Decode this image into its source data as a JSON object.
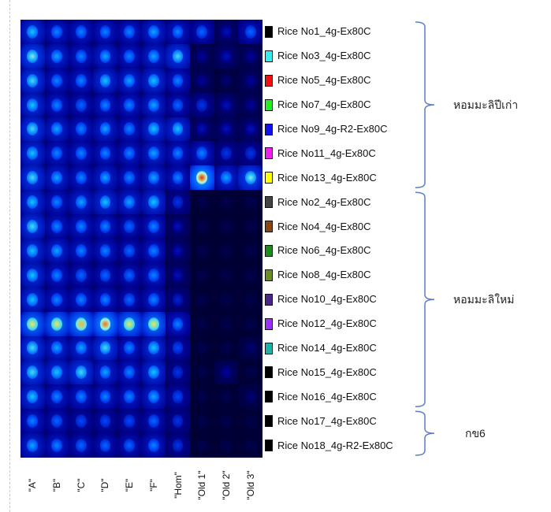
{
  "chart_data": {
    "type": "heatmap",
    "title": "",
    "xlabel": "",
    "ylabel": "",
    "columns": [
      "\"A\"",
      "\"B\"",
      "\"C\"",
      "\"D\"",
      "\"E\"",
      "\"F\"",
      "\"Hom\"",
      "\"Old 1\"",
      "\"Old 2\"",
      "\"Old 3\""
    ],
    "rows": [
      {
        "label": "Rice No1_4g-Ex80C",
        "color": "#000000",
        "values": [
          0.55,
          0.45,
          0.45,
          0.45,
          0.45,
          0.5,
          0.45,
          0.4,
          0.2,
          0.4
        ]
      },
      {
        "label": "Rice No3_4g-Ex80C",
        "color": "#33eeee",
        "values": [
          0.65,
          0.5,
          0.45,
          0.5,
          0.45,
          0.5,
          0.6,
          0.15,
          0.2,
          0.15
        ]
      },
      {
        "label": "Rice No5_4g-Ex80C",
        "color": "#ee1111",
        "values": [
          0.6,
          0.45,
          0.45,
          0.55,
          0.5,
          0.55,
          0.45,
          0.15,
          0.1,
          0.15
        ]
      },
      {
        "label": "Rice No7_4g-Ex80C",
        "color": "#22ee22",
        "values": [
          0.55,
          0.45,
          0.4,
          0.45,
          0.45,
          0.5,
          0.4,
          0.3,
          0.2,
          0.15
        ]
      },
      {
        "label": "Rice No9_4g-R2-Ex80C",
        "color": "#1111ee",
        "values": [
          0.6,
          0.5,
          0.45,
          0.5,
          0.45,
          0.55,
          0.55,
          0.2,
          0.2,
          0.2
        ]
      },
      {
        "label": "Rice No11_4g-Ex80C",
        "color": "#ee22ee",
        "values": [
          0.55,
          0.45,
          0.45,
          0.45,
          0.45,
          0.5,
          0.45,
          0.45,
          0.3,
          0.3
        ]
      },
      {
        "label": "Rice No13_4g-Ex80C",
        "color": "#ffff00",
        "values": [
          0.6,
          0.5,
          0.45,
          0.5,
          0.45,
          0.5,
          0.45,
          0.95,
          0.5,
          0.65
        ]
      },
      {
        "label": "Rice No2_4g-Ex80C",
        "color": "#444444",
        "values": [
          0.55,
          0.45,
          0.5,
          0.55,
          0.5,
          0.55,
          0.3,
          0.05,
          0.05,
          0.05
        ]
      },
      {
        "label": "Rice No4_4g-Ex80C",
        "color": "#8b4513",
        "values": [
          0.6,
          0.45,
          0.45,
          0.45,
          0.4,
          0.45,
          0.2,
          0.05,
          0.05,
          0.05
        ]
      },
      {
        "label": "Rice No6_4g-Ex80C",
        "color": "#1e8b1e",
        "values": [
          0.55,
          0.5,
          0.45,
          0.45,
          0.4,
          0.45,
          0.2,
          0.05,
          0.05,
          0.05
        ]
      },
      {
        "label": "Rice No8_4g-Ex80C",
        "color": "#6b8e23",
        "values": [
          0.55,
          0.45,
          0.4,
          0.4,
          0.4,
          0.45,
          0.2,
          0.05,
          0.05,
          0.05
        ]
      },
      {
        "label": "Rice No10_4g-Ex80C",
        "color": "#4b2888",
        "values": [
          0.55,
          0.45,
          0.45,
          0.45,
          0.4,
          0.45,
          0.25,
          0.05,
          0.05,
          0.05
        ]
      },
      {
        "label": "Rice No12_4g-Ex80C",
        "color": "#9b30ff",
        "values": [
          0.8,
          0.8,
          0.85,
          0.9,
          0.8,
          0.8,
          0.45,
          0.05,
          0.05,
          0.05
        ]
      },
      {
        "label": "Rice No14_4g-Ex80C",
        "color": "#20b2aa",
        "values": [
          0.6,
          0.5,
          0.5,
          0.6,
          0.45,
          0.55,
          0.35,
          0.05,
          0.05,
          0.1
        ]
      },
      {
        "label": "Rice No15_4g-Ex80C",
        "color": "#000000",
        "values": [
          0.6,
          0.55,
          0.6,
          0.5,
          0.45,
          0.55,
          0.3,
          0.05,
          0.15,
          0.05
        ]
      },
      {
        "label": "Rice No16_4g-Ex80C",
        "color": "#000000",
        "values": [
          0.55,
          0.45,
          0.45,
          0.45,
          0.45,
          0.5,
          0.35,
          0.05,
          0.05,
          0.1
        ]
      },
      {
        "label": "Rice No17_4g-Ex80C",
        "color": "#000000",
        "values": [
          0.45,
          0.4,
          0.35,
          0.35,
          0.35,
          0.4,
          0.3,
          0.05,
          0.05,
          0.05
        ]
      },
      {
        "label": "Rice No18_4g-R2-Ex80C",
        "color": "#000000",
        "values": [
          0.5,
          0.45,
          0.4,
          0.4,
          0.4,
          0.45,
          0.3,
          0.05,
          0.05,
          0.05
        ]
      }
    ],
    "groups": [
      {
        "label": "หอมมะลิปีเก่า",
        "from_row": 0,
        "to_row": 6
      },
      {
        "label": "หอมมะลิใหม่",
        "from_row": 7,
        "to_row": 15
      },
      {
        "label": "กข6",
        "from_row": 16,
        "to_row": 17
      }
    ]
  }
}
